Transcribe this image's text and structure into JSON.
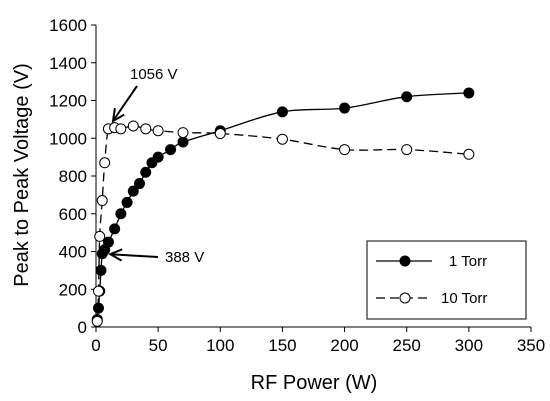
{
  "chart_data": {
    "type": "scatter",
    "xlabel": "RF Power (W)",
    "ylabel": "Peak to Peak Voltage (V)",
    "xlim": [
      0,
      350
    ],
    "ylim": [
      0,
      1600
    ],
    "xticks": [
      "0",
      "50",
      "100",
      "150",
      "200",
      "250",
      "300",
      "350"
    ],
    "yticks": [
      "0",
      "200",
      "400",
      "600",
      "800",
      "1000",
      "1200",
      "1400",
      "1600"
    ],
    "grid": false,
    "legend_position": "bottom-right",
    "series": [
      {
        "name": "1 Torr",
        "marker": "filled-circle",
        "line": "solid",
        "color": "#000000",
        "x": [
          1,
          2,
          3,
          4,
          5,
          7,
          10,
          15,
          20,
          25,
          30,
          35,
          40,
          45,
          50,
          60,
          70,
          100,
          150,
          200,
          250,
          300
        ],
        "y": [
          40,
          100,
          190,
          300,
          388,
          410,
          450,
          520,
          600,
          660,
          720,
          760,
          820,
          870,
          900,
          940,
          980,
          1040,
          1140,
          1160,
          1220,
          1240
        ]
      },
      {
        "name": "10 Torr",
        "marker": "open-circle",
        "line": "dashed",
        "color": "#000000",
        "x": [
          1,
          2,
          3,
          5,
          7,
          10,
          15,
          20,
          30,
          40,
          50,
          70,
          100,
          150,
          200,
          250,
          300
        ],
        "y": [
          30,
          190,
          480,
          670,
          870,
          1050,
          1056,
          1050,
          1065,
          1050,
          1040,
          1030,
          1025,
          995,
          940,
          940,
          915
        ]
      }
    ],
    "annotations": [
      {
        "text": "1056 V",
        "arrow_to": [
          10,
          1056
        ]
      },
      {
        "text": "388 V",
        "arrow_to": [
          5,
          388
        ]
      }
    ]
  }
}
